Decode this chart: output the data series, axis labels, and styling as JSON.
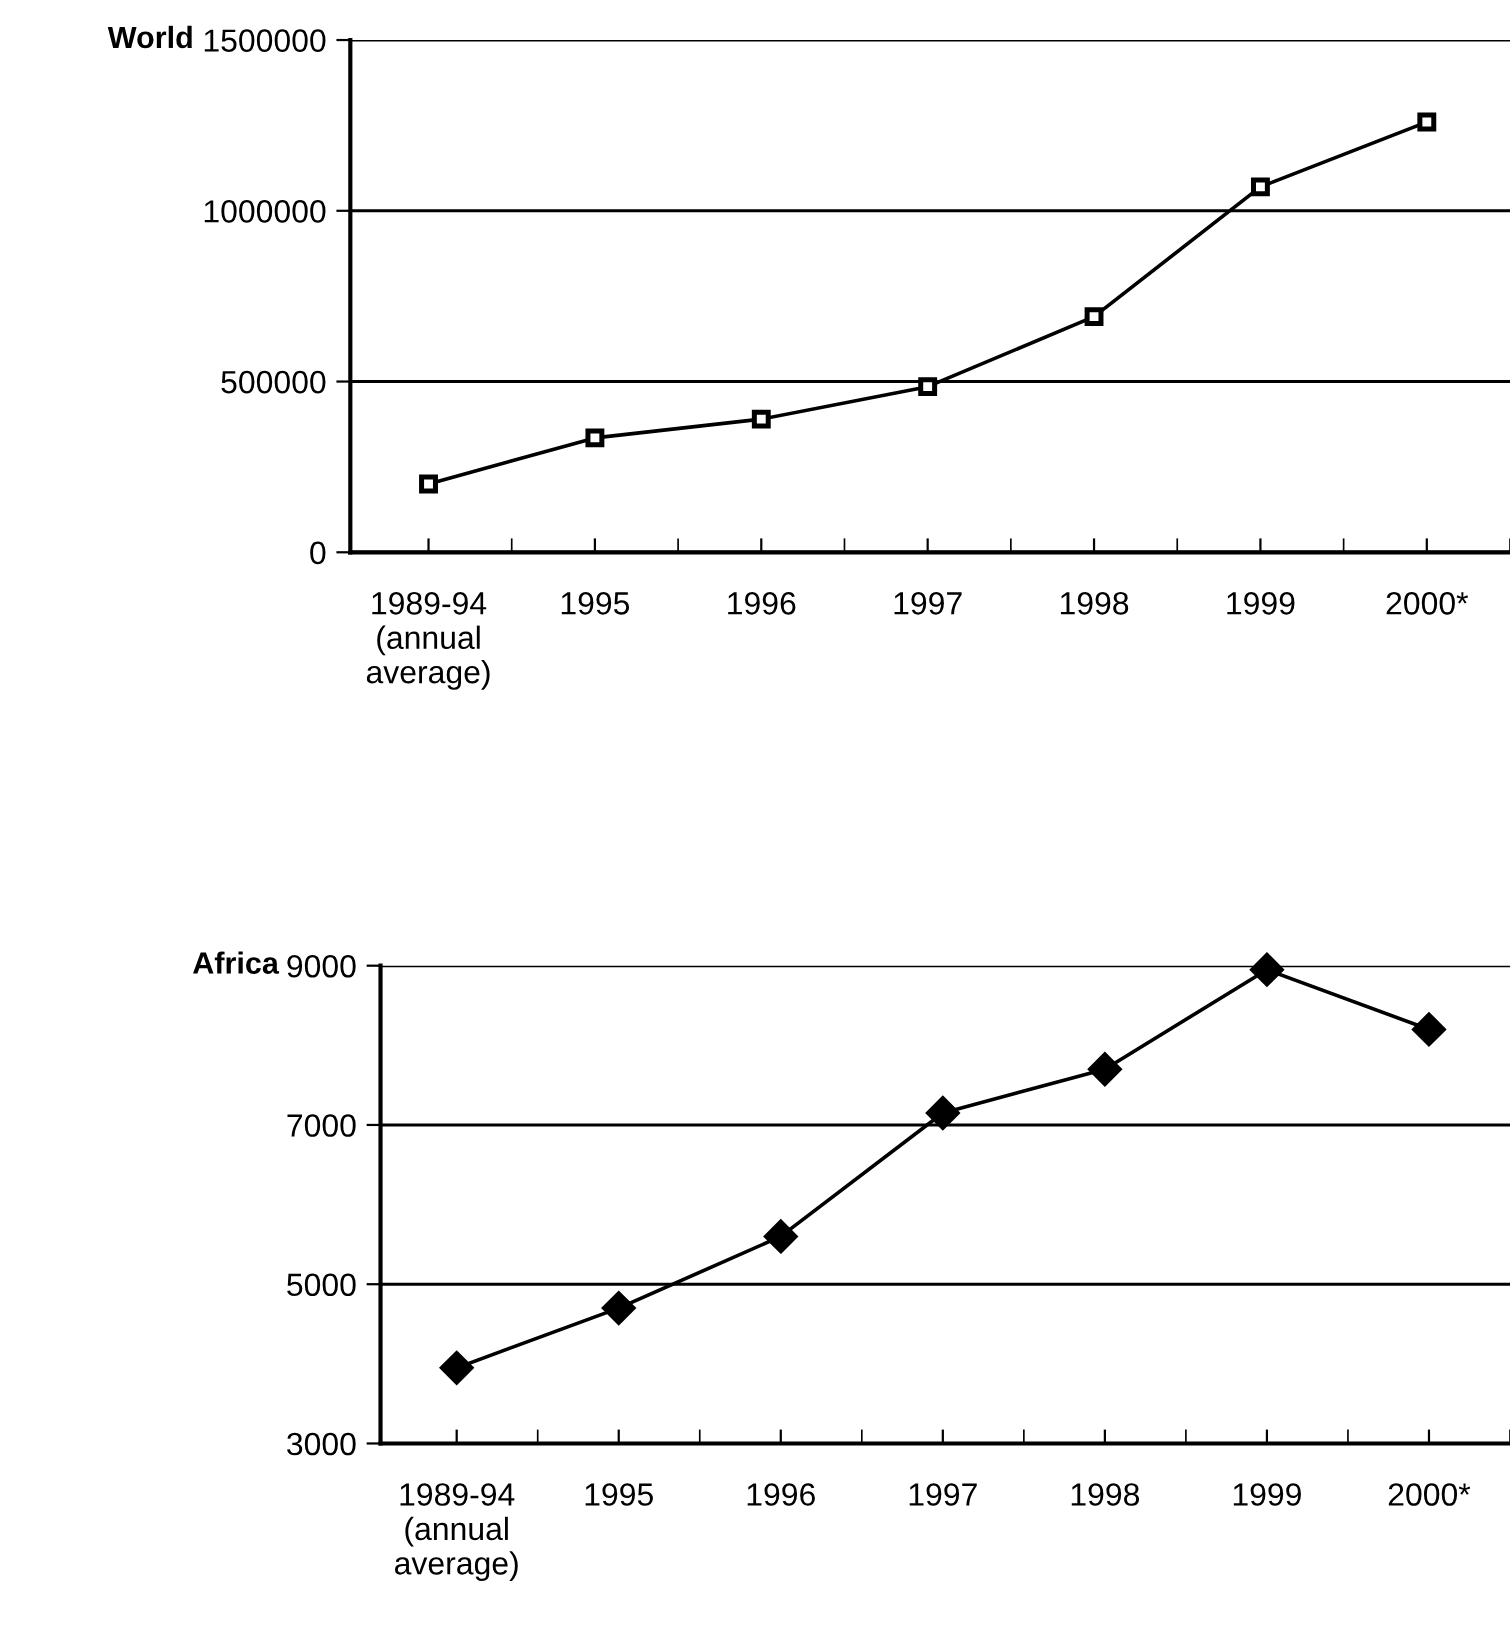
{
  "chart_data": [
    {
      "type": "line",
      "ylabel": "World",
      "categories": [
        "1989-94\n(annual\naverage)",
        "1995",
        "1996",
        "1997",
        "1998",
        "1999",
        "2000*"
      ],
      "series": [
        {
          "color": "#000000",
          "values": [
            200000,
            335000,
            390000,
            485000,
            690000,
            1070000,
            1260000
          ]
        }
      ],
      "ylim": [
        0,
        1500000
      ],
      "yticks": [
        0,
        500000,
        1000000,
        1500000
      ],
      "grid": "y",
      "marker": "square",
      "line_style": "solid"
    },
    {
      "type": "line",
      "ylabel": "Africa",
      "categories": [
        "1989-94\n(annual\naverage)",
        "1995",
        "1996",
        "1997",
        "1998",
        "1999",
        "2000*"
      ],
      "series": [
        {
          "color": "#000000",
          "values": [
            3950,
            4700,
            5600,
            7150,
            7700,
            8950,
            8200
          ]
        }
      ],
      "ylim": [
        3000,
        9000
      ],
      "yticks": [
        3000,
        5000,
        7000,
        9000
      ],
      "grid": "y",
      "marker": "diamond",
      "line_style": "solid"
    }
  ]
}
